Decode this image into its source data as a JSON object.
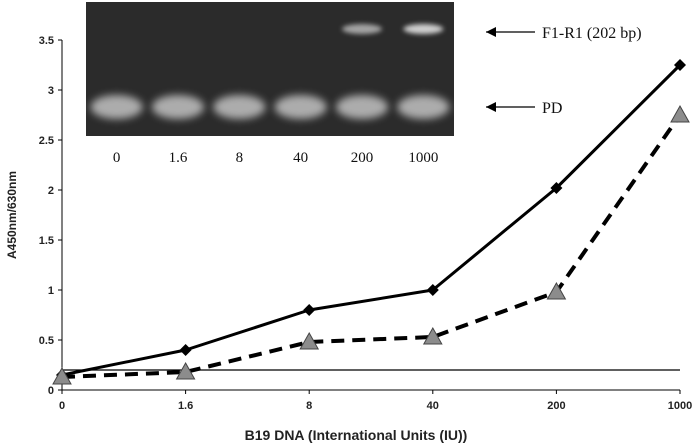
{
  "chart_data": {
    "type": "line",
    "xlabel": "B19 DNA (International Units (IU))",
    "ylabel": "A450nm/630nm",
    "categories": [
      "0",
      "1.6",
      "8",
      "40",
      "200",
      "1000"
    ],
    "yticks": [
      "0",
      "0.5",
      "1",
      "1.5",
      "2",
      "2.5",
      "3",
      "3.5"
    ],
    "ylim": [
      0,
      3.5
    ],
    "cutoff": 0.2,
    "series": [
      {
        "marker": "diamond",
        "line": "solid",
        "values": [
          0.15,
          0.4,
          0.8,
          1.0,
          2.02,
          3.25
        ],
        "color": "#000000"
      },
      {
        "marker": "triangle",
        "line": "dashed",
        "values": [
          0.13,
          0.18,
          0.48,
          0.53,
          0.98,
          2.75
        ],
        "color": "#000000",
        "marker_fill": "#8c8c8c"
      }
    ],
    "legend": "none",
    "grid": false
  },
  "gel_inset": {
    "lanes": [
      "0",
      "1.6",
      "8",
      "40",
      "200",
      "1000"
    ],
    "annotations": [
      "F1-R1 (202 bp)",
      "PD"
    ],
    "band_product_lanes_visible": [
      "200",
      "1000"
    ],
    "colors": {
      "background": "#2a2a2a",
      "band": "#d8d8d8"
    }
  }
}
